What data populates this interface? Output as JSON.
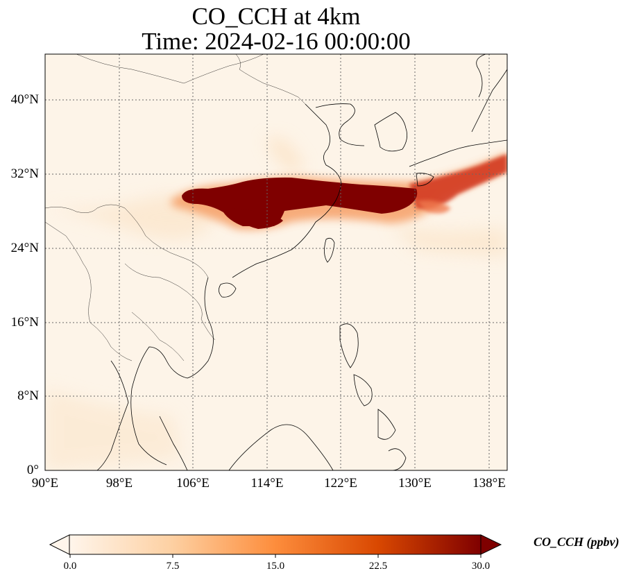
{
  "title": {
    "line1": "CO_CCH at 4km",
    "line2": "Time: 2024-02-16 00:00:00"
  },
  "axes": {
    "lat_ticks": [
      "40°N",
      "32°N",
      "24°N",
      "16°N",
      "8°N",
      "0°"
    ],
    "lon_ticks": [
      "90°E",
      "98°E",
      "106°E",
      "114°E",
      "122°E",
      "130°E",
      "138°E"
    ],
    "lat_range": [
      0,
      44
    ],
    "lon_range": [
      90,
      140
    ],
    "gridlines": "dotted"
  },
  "colorbar": {
    "label": "CO_CCH (ppbv)",
    "ticks": [
      "0.0",
      "7.5",
      "15.0",
      "22.5",
      "30.0"
    ],
    "range": [
      0,
      30
    ],
    "colormap": [
      "#fff5eb",
      "#fdd0a2",
      "#fd8d3c",
      "#d94801",
      "#7f0000"
    ],
    "extend": "both"
  },
  "colors": {
    "background": "#fdf4e8",
    "plume_core": "#7f0000",
    "plume_edge": "#e0442a",
    "coastline": "#000000",
    "grid": "#777777"
  },
  "chart_data": {
    "type": "heatmap",
    "variable": "CO_CCH",
    "units": "ppbv",
    "level": "4km",
    "time": "2024-02-16 00:00:00",
    "features": [
      {
        "region": "Central-eastern China to East China Sea",
        "lat_range": [
          26,
          31.5
        ],
        "lon_range": [
          104,
          133
        ],
        "value": 30
      },
      {
        "region": "South Japan to Pacific",
        "lat_range": [
          28,
          34
        ],
        "lon_range": [
          130,
          140
        ],
        "value": 15
      }
    ]
  }
}
